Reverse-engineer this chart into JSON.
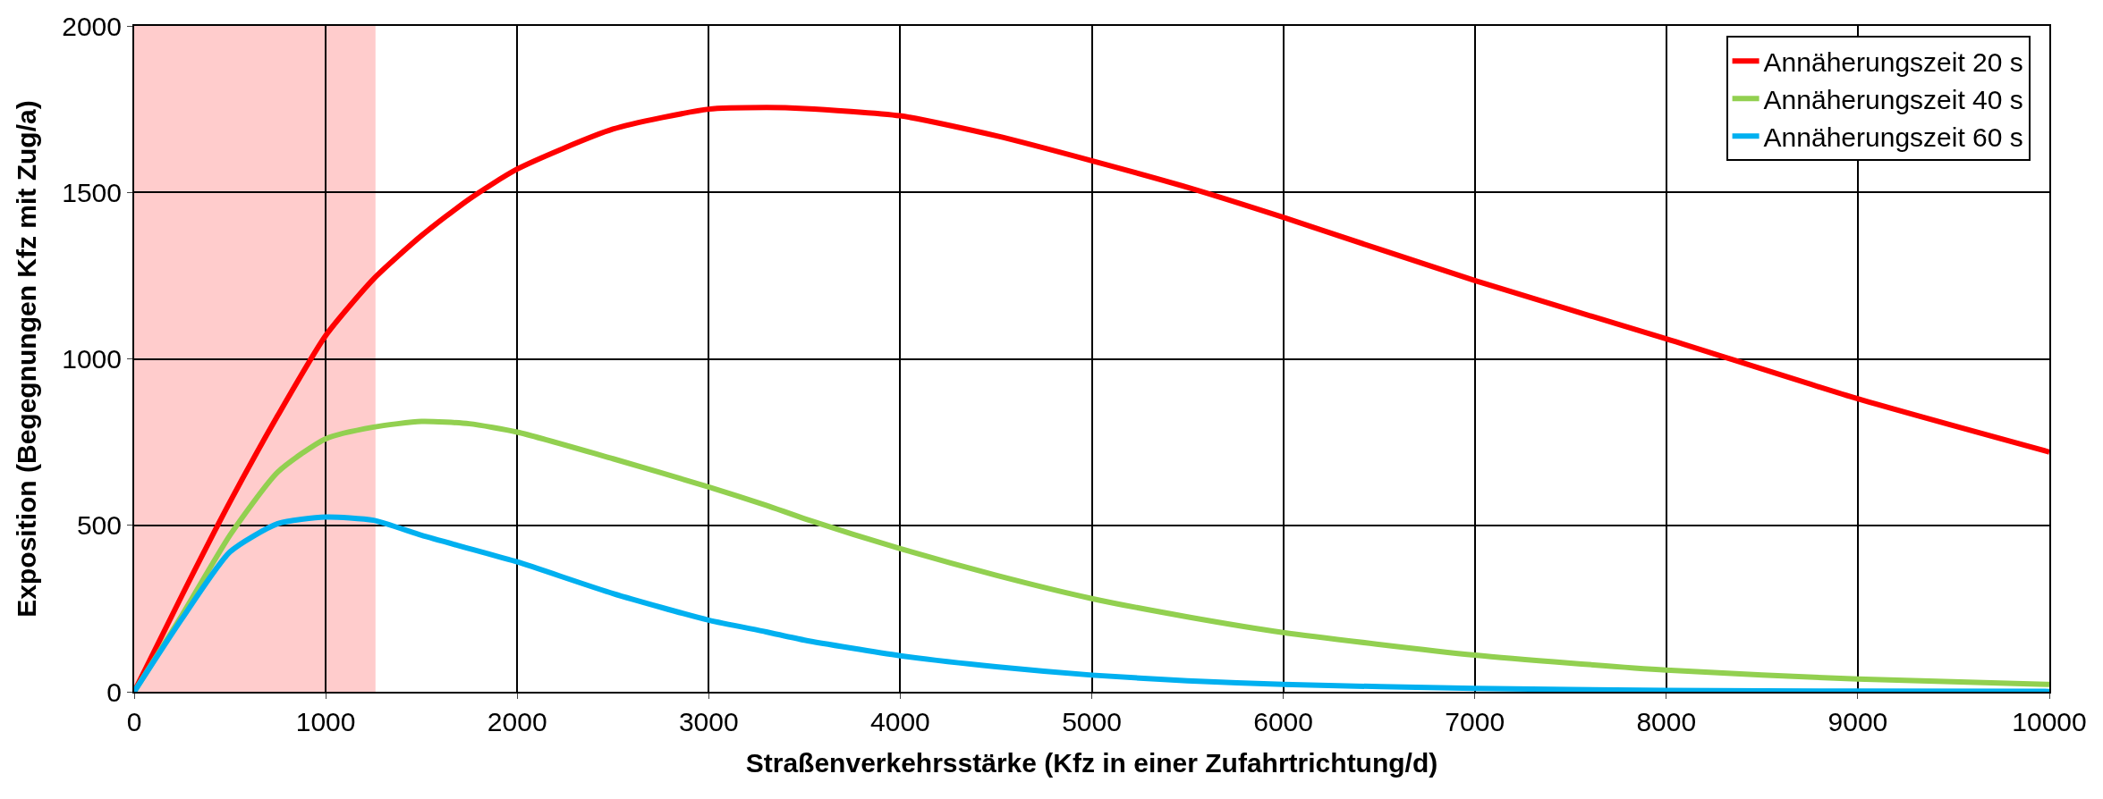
{
  "chart_data": {
    "type": "line",
    "xlabel": "Straßenverkehrsstärke (Kfz in einer Zufahrtrichtung/d)",
    "ylabel": "Exposition (Begegnungen Kfz mit Zug/a)",
    "x": [
      0,
      250,
      500,
      750,
      1000,
      1250,
      1500,
      1750,
      2000,
      2500,
      3000,
      3300,
      3500,
      4000,
      4500,
      5000,
      5500,
      6000,
      7000,
      8000,
      9000,
      10000
    ],
    "series": [
      {
        "name": "Annäherungszeit 20 s",
        "color": "#ff0000",
        "values": [
          0,
          290,
          570,
          830,
          1070,
          1240,
          1370,
          1480,
          1570,
          1690,
          1750,
          1755,
          1752,
          1730,
          1670,
          1595,
          1515,
          1425,
          1235,
          1060,
          880,
          720
        ]
      },
      {
        "name": "Annäherungszeit 40 s",
        "color": "#92d050",
        "values": [
          0,
          230,
          470,
          660,
          760,
          795,
          812,
          805,
          780,
          700,
          615,
          560,
          520,
          430,
          350,
          280,
          225,
          178,
          110,
          65,
          38,
          22
        ]
      },
      {
        "name": "Annäherungszeit 60 s",
        "color": "#00b0f0",
        "values": [
          0,
          220,
          420,
          505,
          525,
          515,
          470,
          430,
          390,
          295,
          215,
          180,
          155,
          108,
          75,
          50,
          33,
          22,
          10,
          4,
          2,
          1
        ]
      }
    ],
    "bands": [
      {
        "axis": "x",
        "from": 0,
        "to": 1260,
        "color": "#ffcccc"
      }
    ],
    "xlim": [
      0,
      10000
    ],
    "xticks": [
      0,
      1000,
      2000,
      3000,
      4000,
      5000,
      6000,
      7000,
      8000,
      9000,
      10000
    ],
    "ylim": [
      0,
      2000
    ],
    "yticks": [
      0,
      500,
      1000,
      1500,
      2000
    ],
    "grid": true,
    "legend": "top right",
    "marker": "none",
    "line_style": "solid"
  }
}
